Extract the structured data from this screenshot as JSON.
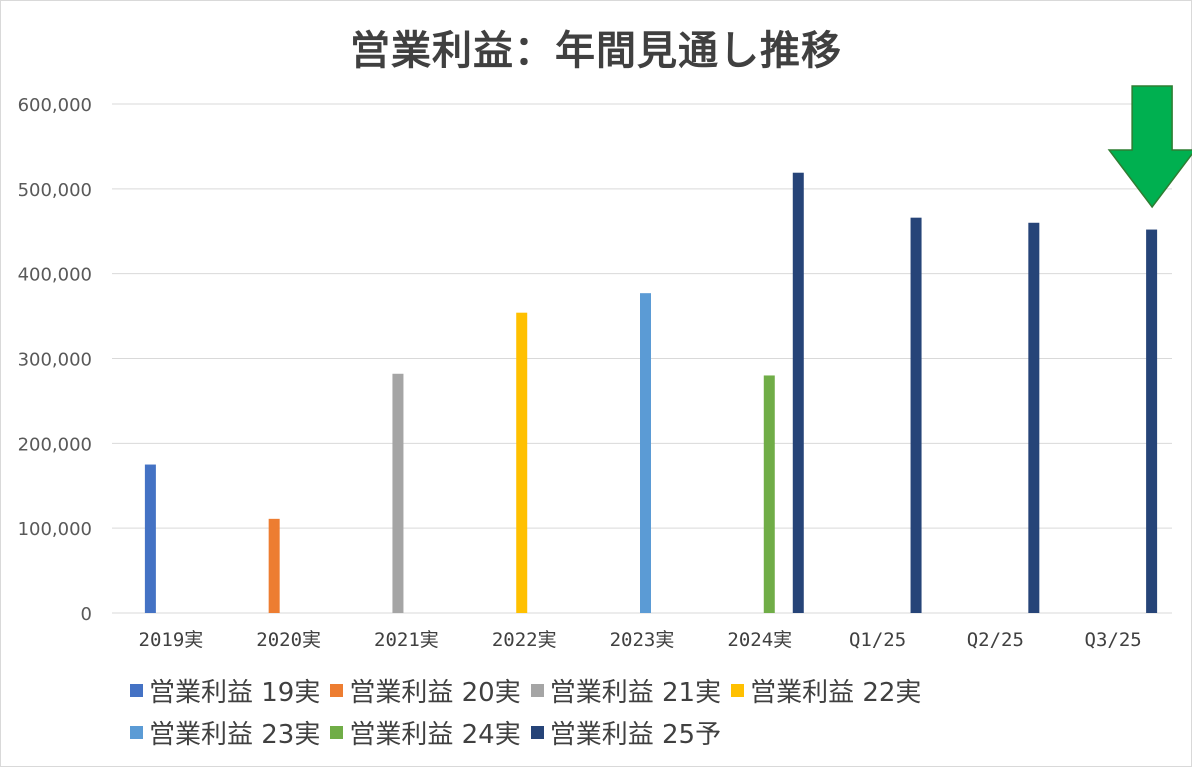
{
  "chart_data": {
    "type": "bar",
    "title": "営業利益：年間見通し推移",
    "categories": [
      "2019実",
      "2020実",
      "2021実",
      "2022実",
      "2023実",
      "2024実",
      "Q1/25",
      "Q2/25",
      "Q3/25"
    ],
    "ylim": [
      0,
      600000
    ],
    "yticks": [
      0,
      100000,
      200000,
      300000,
      400000,
      500000,
      600000
    ],
    "ytick_labels": [
      "0",
      "100,000",
      "200,000",
      "300,000",
      "400,000",
      "500,000",
      "600,000"
    ],
    "grid": true,
    "legend_position": "bottom",
    "series": [
      {
        "name": "営業利益 19実",
        "color": "#4472c4",
        "values": [
          175000,
          null,
          null,
          null,
          null,
          null,
          null,
          null,
          null
        ]
      },
      {
        "name": "営業利益 20実",
        "color": "#ed7d31",
        "values": [
          null,
          111000,
          null,
          null,
          null,
          null,
          null,
          null,
          null
        ]
      },
      {
        "name": "営業利益 21実",
        "color": "#a5a5a5",
        "values": [
          null,
          null,
          282000,
          null,
          null,
          null,
          null,
          null,
          null
        ]
      },
      {
        "name": "営業利益 22実",
        "color": "#ffc000",
        "values": [
          null,
          null,
          null,
          354000,
          null,
          null,
          null,
          null,
          null
        ]
      },
      {
        "name": "営業利益 23実",
        "color": "#5b9bd5",
        "values": [
          null,
          null,
          null,
          null,
          377000,
          null,
          null,
          null,
          null
        ]
      },
      {
        "name": "営業利益 24実",
        "color": "#70ad47",
        "values": [
          null,
          null,
          null,
          null,
          null,
          280000,
          null,
          null,
          null
        ]
      },
      {
        "name": "営業利益 25予",
        "color": "#264478",
        "values": [
          null,
          null,
          null,
          null,
          null,
          519000,
          466000,
          460000,
          452000
        ]
      }
    ],
    "annotation": {
      "type": "arrow-down",
      "color": "#00b050",
      "stroke": "#2e7d32",
      "category": "Q3/25"
    }
  }
}
